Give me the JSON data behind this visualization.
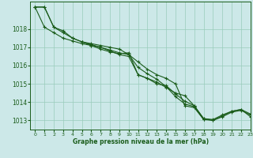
{
  "title": "Graphe pression niveau de la mer (hPa)",
  "background_color": "#cce8e8",
  "grid_color": "#99ccbb",
  "line_color": "#1a5c1a",
  "xlim": [
    -0.5,
    23
  ],
  "ylim": [
    1012.5,
    1019.5
  ],
  "yticks": [
    1013,
    1014,
    1015,
    1016,
    1017,
    1018
  ],
  "xticks": [
    0,
    1,
    2,
    3,
    4,
    5,
    6,
    7,
    8,
    9,
    10,
    11,
    12,
    13,
    14,
    15,
    16,
    17,
    18,
    19,
    20,
    21,
    22,
    23
  ],
  "series": [
    [
      1019.2,
      1019.2,
      1018.1,
      1017.9,
      1017.5,
      1017.3,
      1017.2,
      1017.1,
      1017.0,
      1016.9,
      1016.6,
      1016.2,
      1015.8,
      1015.5,
      1015.3,
      1015.0,
      1013.8,
      1013.7,
      1013.05,
      null,
      null,
      null,
      null,
      null
    ],
    [
      1019.2,
      1019.2,
      1018.1,
      1017.8,
      1017.5,
      1017.3,
      1017.1,
      1017.0,
      1016.8,
      1016.6,
      1016.5,
      1015.5,
      1015.3,
      1015.1,
      1014.8,
      1014.5,
      1014.35,
      1013.8,
      1013.1,
      1013.0,
      1013.25,
      1013.5,
      1013.6,
      1013.2
    ],
    [
      1019.2,
      1018.1,
      1017.8,
      1017.5,
      1017.35,
      1017.2,
      1017.1,
      1016.9,
      1016.75,
      1016.65,
      1016.7,
      1015.5,
      1015.3,
      1015.0,
      1014.9,
      1014.45,
      1014.05,
      1013.8,
      1013.1,
      1013.05,
      1013.3,
      1013.5,
      1013.6,
      1013.35
    ],
    [
      null,
      null,
      null,
      null,
      null,
      1017.3,
      1017.15,
      1017.0,
      1016.85,
      1016.7,
      1016.6,
      1015.9,
      1015.55,
      1015.25,
      1014.85,
      1014.3,
      1013.9,
      1013.75,
      1013.05,
      1013.0,
      1013.2,
      1013.45,
      1013.55,
      1013.3
    ]
  ]
}
